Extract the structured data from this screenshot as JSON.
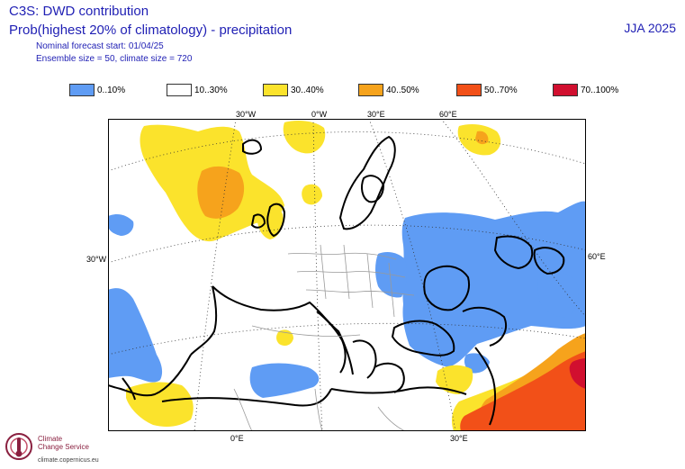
{
  "header": {
    "title": "C3S: DWD contribution",
    "subtitle": "Prob(highest 20% of climatology) - precipitation",
    "forecast_start": "Nominal forecast start: 01/04/25",
    "ensemble": "Ensemble size = 50, climate size = 720",
    "season": "JJA 2025"
  },
  "legend": [
    {
      "label": "0..10%",
      "color": "#5f9cf4"
    },
    {
      "label": "10..30%",
      "color": "#ffffff"
    },
    {
      "label": "30..40%",
      "color": "#fbe32c"
    },
    {
      "label": "40..50%",
      "color": "#f6a31c"
    },
    {
      "label": "50..70%",
      "color": "#f25018"
    },
    {
      "label": "70..100%",
      "color": "#d10f2f"
    }
  ],
  "grid_labels": {
    "top": [
      "30°W",
      "0°W",
      "30°E",
      "60°E"
    ],
    "left": "30°W",
    "right": "60°E",
    "bottom": [
      "0°E",
      "30°E"
    ]
  },
  "logo": {
    "line1": "Climate",
    "line2": "Change Service",
    "url": "climate.copernicus.eu"
  }
}
